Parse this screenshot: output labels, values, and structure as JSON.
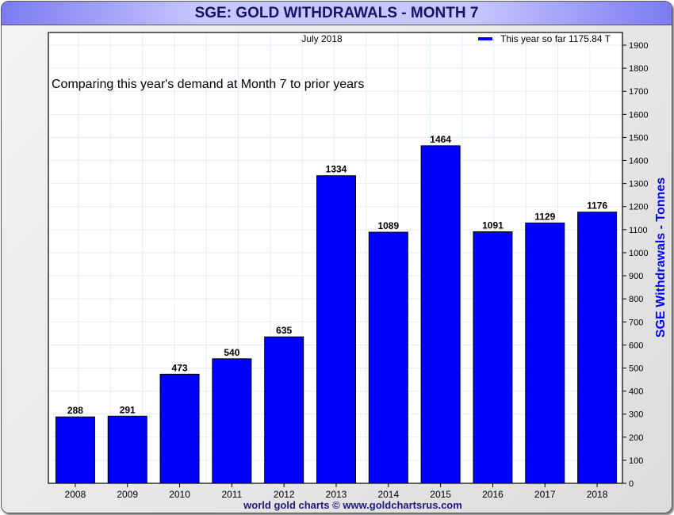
{
  "title": "SGE: GOLD WITHDRAWALS - MONTH 7",
  "footer": "world gold charts © www.goldchartsrus.com",
  "colors": {
    "bar": "#0000ff",
    "axis_label": "#0000ff",
    "footer": "#1a1a80"
  },
  "chart_data": {
    "type": "bar",
    "subtitle": "July 2018",
    "annotation": "Comparing this year's demand at Month 7 to prior years",
    "legend": {
      "label": "This year so far 1175.84 T",
      "placement": "top-right"
    },
    "ylabel": "SGE Withdrawals - Tonnes",
    "ylim": [
      0,
      1950
    ],
    "yticks": [
      0,
      100,
      200,
      300,
      400,
      500,
      600,
      700,
      800,
      900,
      1000,
      1100,
      1200,
      1300,
      1400,
      1500,
      1600,
      1700,
      1800,
      1900
    ],
    "categories": [
      "2008",
      "2009",
      "2010",
      "2011",
      "2012",
      "2013",
      "2014",
      "2015",
      "2016",
      "2017",
      "2018"
    ],
    "values": [
      288,
      291,
      473,
      540,
      635,
      1334,
      1089,
      1464,
      1091,
      1129,
      1176
    ],
    "grid": true
  }
}
